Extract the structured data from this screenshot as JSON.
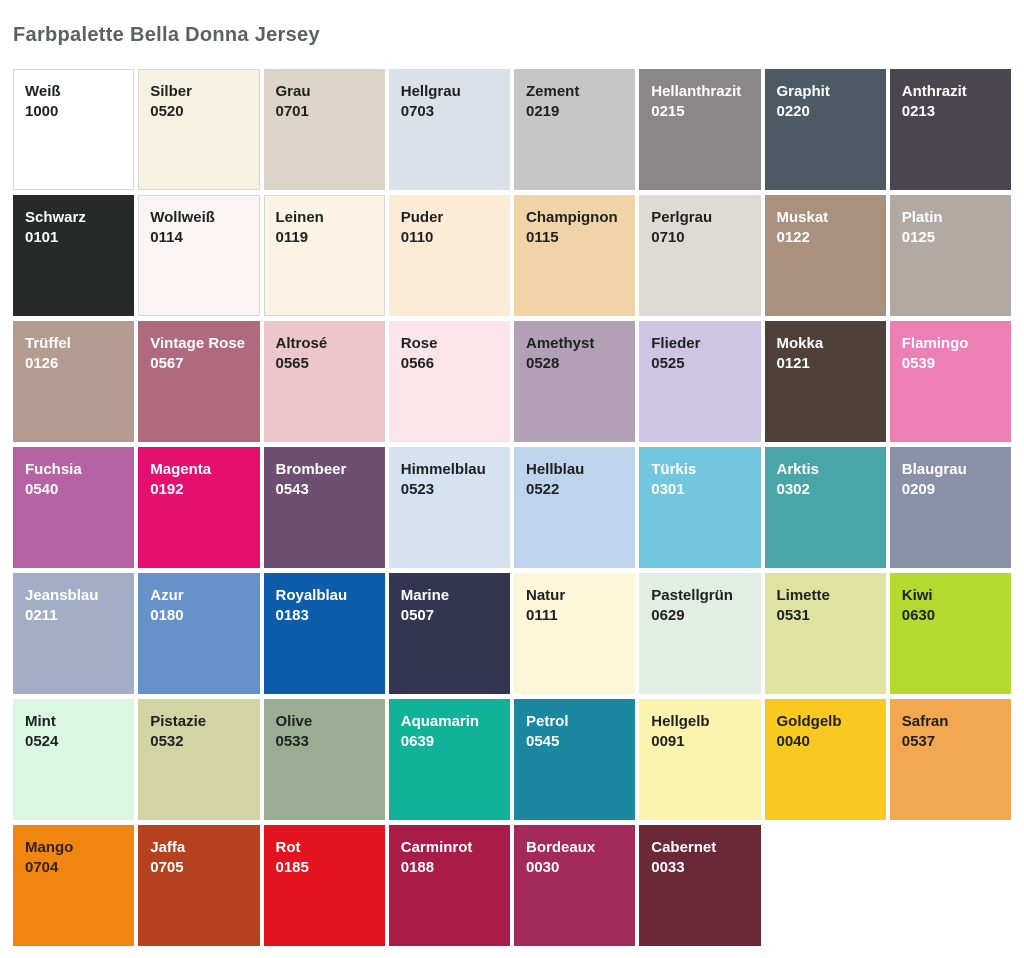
{
  "page": {
    "title": "Farbpalette Bella Donna Jersey",
    "title_color": "#5d5f60",
    "background": "#ffffff"
  },
  "palette": {
    "columns": 8,
    "dark_text_color": "#1f2121",
    "light_text_color": "#ffffff",
    "swatches": [
      {
        "name": "Weiß",
        "code": "1000",
        "bg": "#ffffff",
        "text_color": "#1f2121",
        "border": true
      },
      {
        "name": "Silber",
        "code": "0520",
        "bg": "#f6f1e1",
        "text_color": "#1f2121",
        "border": true
      },
      {
        "name": "Grau",
        "code": "0701",
        "bg": "#dcd4c7",
        "text_color": "#1f2121",
        "border": false
      },
      {
        "name": "Hellgrau",
        "code": "0703",
        "bg": "#dbe1ea",
        "text_color": "#1f2121",
        "border": false
      },
      {
        "name": "Zement",
        "code": "0219",
        "bg": "#c5c6c5",
        "text_color": "#1f2121",
        "border": false
      },
      {
        "name": "Hellanthrazit",
        "code": "0215",
        "bg": "#8b8788",
        "text_color": "#ffffff",
        "border": false
      },
      {
        "name": "Graphit",
        "code": "0220",
        "bg": "#4d5963",
        "text_color": "#ffffff",
        "border": false
      },
      {
        "name": "Anthrazit",
        "code": "0213",
        "bg": "#4a464f",
        "text_color": "#ffffff",
        "border": false
      },
      {
        "name": "Schwarz",
        "code": "0101",
        "bg": "#262a29",
        "text_color": "#ffffff",
        "border": false
      },
      {
        "name": "Wollweiß",
        "code": "0114",
        "bg": "#faf5f3",
        "text_color": "#1f2121",
        "border": true
      },
      {
        "name": "Leinen",
        "code": "0119",
        "bg": "#fbf4e4",
        "text_color": "#1f2121",
        "border": true
      },
      {
        "name": "Puder",
        "code": "0110",
        "bg": "#fdecd5",
        "text_color": "#1f2121",
        "border": false
      },
      {
        "name": "Champignon",
        "code": "0115",
        "bg": "#f0d3a6",
        "text_color": "#1f2121",
        "border": false
      },
      {
        "name": "Perlgrau",
        "code": "0710",
        "bg": "#dddbd3",
        "text_color": "#1f2121",
        "border": false
      },
      {
        "name": "Muskat",
        "code": "0122",
        "bg": "#a9917d",
        "text_color": "#ffffff",
        "border": false
      },
      {
        "name": "Platin",
        "code": "0125",
        "bg": "#b2a9a2",
        "text_color": "#ffffff",
        "border": false
      },
      {
        "name": "Trüffel",
        "code": "0126",
        "bg": "#b59a90",
        "text_color": "#ffffff",
        "border": false
      },
      {
        "name": "Vintage Rose",
        "code": "0567",
        "bg": "#b06a7d",
        "text_color": "#ffffff",
        "border": false
      },
      {
        "name": "Altrosé",
        "code": "0565",
        "bg": "#ecc6ca",
        "text_color": "#1f2121",
        "border": false
      },
      {
        "name": "Rose",
        "code": "0566",
        "bg": "#fce4eb",
        "text_color": "#1f2121",
        "border": false
      },
      {
        "name": "Amethyst",
        "code": "0528",
        "bg": "#b2a0b4",
        "text_color": "#1f2121",
        "border": false
      },
      {
        "name": "Flieder",
        "code": "0525",
        "bg": "#cdc5e3",
        "text_color": "#1f2121",
        "border": false
      },
      {
        "name": "Mokka",
        "code": "0121",
        "bg": "#50403a",
        "text_color": "#ffffff",
        "border": false
      },
      {
        "name": "Flamingo",
        "code": "0539",
        "bg": "#ec7fb4",
        "text_color": "#ffffff",
        "border": false
      },
      {
        "name": "Fuchsia",
        "code": "0540",
        "bg": "#b563a3",
        "text_color": "#ffffff",
        "border": false
      },
      {
        "name": "Magenta",
        "code": "0192",
        "bg": "#e50f6f",
        "text_color": "#ffffff",
        "border": false
      },
      {
        "name": "Brombeer",
        "code": "0543",
        "bg": "#6f4f71",
        "text_color": "#ffffff",
        "border": false
      },
      {
        "name": "Himmelblau",
        "code": "0523",
        "bg": "#d5e2f1",
        "text_color": "#1f2121",
        "border": false
      },
      {
        "name": "Hellblau",
        "code": "0522",
        "bg": "#bdd4ec",
        "text_color": "#1f2121",
        "border": false
      },
      {
        "name": "Türkis",
        "code": "0301",
        "bg": "#72c6dd",
        "text_color": "#ffffff",
        "border": false
      },
      {
        "name": "Arktis",
        "code": "0302",
        "bg": "#4aa5a9",
        "text_color": "#ffffff",
        "border": false
      },
      {
        "name": "Blaugrau",
        "code": "0209",
        "bg": "#8b90a9",
        "text_color": "#ffffff",
        "border": false
      },
      {
        "name": "Jeansblau",
        "code": "0211",
        "bg": "#a3aec6",
        "text_color": "#ffffff",
        "border": false
      },
      {
        "name": "Azur",
        "code": "0180",
        "bg": "#6592c8",
        "text_color": "#ffffff",
        "border": false
      },
      {
        "name": "Royalblau",
        "code": "0183",
        "bg": "#0e5cac",
        "text_color": "#ffffff",
        "border": false
      },
      {
        "name": "Marine",
        "code": "0507",
        "bg": "#343551",
        "text_color": "#ffffff",
        "border": false
      },
      {
        "name": "Natur",
        "code": "0111",
        "bg": "#fdf6d8",
        "text_color": "#1f2121",
        "border": false
      },
      {
        "name": "Pastellgrün",
        "code": "0629",
        "bg": "#e2eee4",
        "text_color": "#1f2121",
        "border": false
      },
      {
        "name": "Limette",
        "code": "0531",
        "bg": "#dfe2a0",
        "text_color": "#1f2121",
        "border": false
      },
      {
        "name": "Kiwi",
        "code": "0630",
        "bg": "#b4d92f",
        "text_color": "#1f2121",
        "border": false
      },
      {
        "name": "Mint",
        "code": "0524",
        "bg": "#d9f7e1",
        "text_color": "#1f2121",
        "border": false
      },
      {
        "name": "Pistazie",
        "code": "0532",
        "bg": "#d2d5a3",
        "text_color": "#1f2121",
        "border": false
      },
      {
        "name": "Olive",
        "code": "0533",
        "bg": "#99ad93",
        "text_color": "#1f2121",
        "border": false
      },
      {
        "name": "Aquamarin",
        "code": "0639",
        "bg": "#10b397",
        "text_color": "#ffffff",
        "border": false
      },
      {
        "name": "Petrol",
        "code": "0545",
        "bg": "#1b87a0",
        "text_color": "#ffffff",
        "border": false
      },
      {
        "name": "Hellgelb",
        "code": "0091",
        "bg": "#fbf3ae",
        "text_color": "#1f2121",
        "border": false
      },
      {
        "name": "Goldgelb",
        "code": "0040",
        "bg": "#f8c921",
        "text_color": "#1f2121",
        "border": false
      },
      {
        "name": "Safran",
        "code": "0537",
        "bg": "#f1a850",
        "text_color": "#1f2121",
        "border": false
      },
      {
        "name": "Mango",
        "code": "0704",
        "bg": "#f08510",
        "text_color": "#33210a",
        "border": false
      },
      {
        "name": "Jaffa",
        "code": "0705",
        "bg": "#b5411f",
        "text_color": "#ffffff",
        "border": false
      },
      {
        "name": "Rot",
        "code": "0185",
        "bg": "#e41320",
        "text_color": "#ffffff",
        "border": false
      },
      {
        "name": "Carminrot",
        "code": "0188",
        "bg": "#a81c47",
        "text_color": "#ffffff",
        "border": false
      },
      {
        "name": "Bordeaux",
        "code": "0030",
        "bg": "#a32a5a",
        "text_color": "#ffffff",
        "border": false
      },
      {
        "name": "Cabernet",
        "code": "0033",
        "bg": "#6b2837",
        "text_color": "#ffffff",
        "border": false
      }
    ]
  }
}
